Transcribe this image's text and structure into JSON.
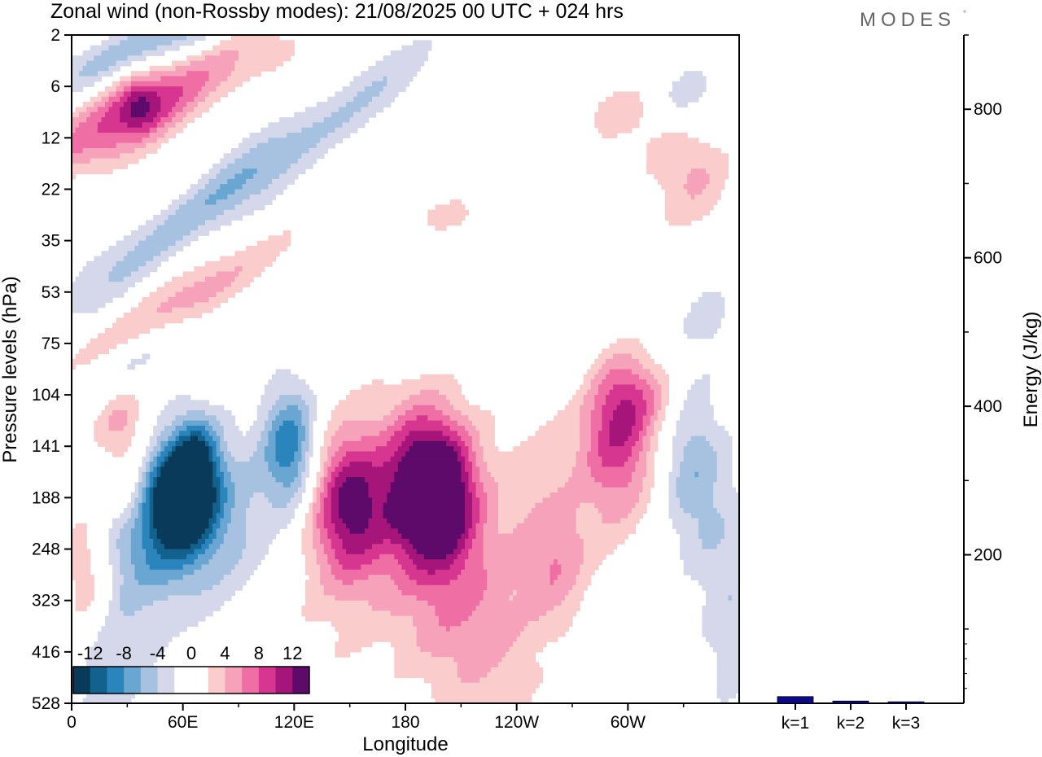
{
  "chart_data": [
    {
      "type": "heatmap",
      "title": "Zonal wind (non-Rossby modes):  21/08/2025  00 UTC  + 024 hrs",
      "xlabel": "Longitude",
      "ylabel": "Pressure levels (hPa)",
      "x_ticks": [
        "0",
        "60E",
        "120E",
        "180",
        "120W",
        "60W"
      ],
      "x_tick_values": [
        0,
        60,
        120,
        180,
        240,
        300
      ],
      "xlim": [
        0,
        360
      ],
      "y_ticks": [
        "2",
        "6",
        "12",
        "22",
        "35",
        "53",
        "75",
        "104",
        "141",
        "188",
        "248",
        "323",
        "416",
        "528"
      ],
      "colorbar": {
        "labels": [
          "-12",
          "-8",
          "-4",
          "0",
          "4",
          "8",
          "12"
        ],
        "levels": [
          -14,
          -12,
          -10,
          -8,
          -6,
          -4,
          -2,
          0,
          2,
          4,
          6,
          8,
          10,
          12,
          14
        ],
        "colors": [
          "#0a3a5a",
          "#13628e",
          "#2a85bd",
          "#6aa6d2",
          "#a6c2e0",
          "#d4d8ea",
          "#ffffff",
          "#ffffff",
          "#fbcccc",
          "#f7a2bb",
          "#ef6fa4",
          "#d6368f",
          "#a5157a",
          "#5d0a6a"
        ]
      },
      "regions": [
        {
          "lon": 50,
          "lev": 9,
          "value": -13,
          "name": "jet-core-east-neg"
        },
        {
          "lon": 68,
          "lev": 8.2,
          "value": -14,
          "name": "jet-core-east-neg-2"
        },
        {
          "lon": 118,
          "lev": 8.3,
          "value": -9,
          "name": "secondary-neg-120E"
        },
        {
          "lon": 150,
          "lev": 9.2,
          "value": 10,
          "name": "pos-core-150"
        },
        {
          "lon": 185,
          "lev": 8.8,
          "value": 10,
          "name": "pos-core-185"
        },
        {
          "lon": 200,
          "lev": 8.9,
          "value": 11,
          "name": "pos-core-200"
        },
        {
          "lon": 295,
          "lev": 7.9,
          "value": 9,
          "name": "pos-core-60W"
        },
        {
          "lon": 40,
          "lev": 1.3,
          "value": 10,
          "name": "upper-pos-band"
        },
        {
          "lon": 15,
          "lev": 0.3,
          "value": -7,
          "name": "upper-neg-top"
        }
      ]
    },
    {
      "type": "bar",
      "ylabel": "Energy (J/kg)",
      "categories": [
        "k=1",
        "k=2",
        "k=3"
      ],
      "values": [
        9,
        3,
        2
      ],
      "ylim": [
        0,
        900
      ],
      "y_ticks": [
        "200",
        "400",
        "600",
        "800"
      ],
      "y_tick_values": [
        200,
        400,
        600,
        800
      ],
      "bar_color": "#0a0a8a"
    }
  ],
  "branding": {
    "logo": "MODES"
  }
}
